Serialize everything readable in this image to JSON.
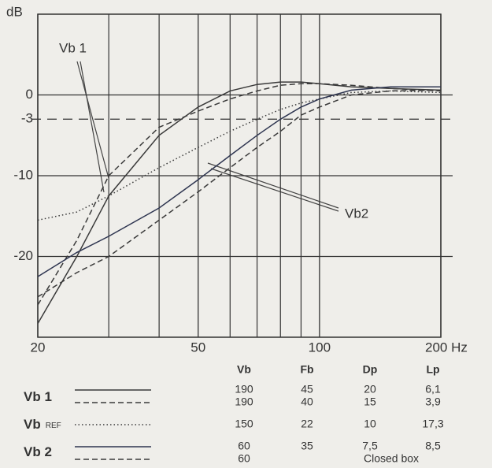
{
  "chart_data": {
    "type": "line",
    "ylabel": "dB",
    "log_x": true,
    "xlim": [
      20,
      200
    ],
    "ylim": [
      -30,
      10
    ],
    "xticks": [
      20,
      50,
      100,
      {
        "value": 200,
        "label": "200 Hz"
      }
    ],
    "xminorticks": [
      30,
      40,
      60,
      70,
      80,
      90
    ],
    "yticks": [
      0,
      {
        "value": -3,
        "label": "-3",
        "line": "dashed"
      },
      -10,
      -20
    ],
    "grid": true,
    "x": [
      20,
      25,
      30,
      40,
      50,
      60,
      70,
      80,
      90,
      100,
      120,
      150,
      200
    ],
    "series": [
      {
        "group": 0,
        "dash": "solid",
        "color": "#3a3a3a",
        "values": [
          -28.3,
          -20,
          -12.5,
          -5,
          -1.5,
          0.5,
          1.3,
          1.6,
          1.6,
          1.4,
          1.0,
          0.8,
          0.6
        ]
      },
      {
        "group": 0,
        "dash": "dashed",
        "color": "#3a3a3a",
        "values": [
          -26,
          -18,
          -10,
          -4,
          -2,
          -0.5,
          0.5,
          1.2,
          1.4,
          1.4,
          1.2,
          0.8,
          0.5
        ]
      },
      {
        "group": 1,
        "dash": "dotted",
        "color": "#3a3a3a",
        "values": [
          -15.5,
          -14.5,
          -12.5,
          -9,
          -6.5,
          -4.5,
          -3,
          -1.8,
          -1,
          -0.5,
          0.3,
          0.5,
          0.3
        ]
      },
      {
        "group": 2,
        "dash": "solid",
        "color": "#2e3550",
        "values": [
          -22.5,
          -19.5,
          -17.5,
          -14,
          -10.5,
          -7.5,
          -5,
          -3,
          -1.5,
          -0.5,
          0.6,
          1.0,
          1.0
        ]
      },
      {
        "group": 2,
        "dash": "dashed",
        "color": "#3a3a3a",
        "values": [
          -25,
          -22,
          -20,
          -15.5,
          -12,
          -9,
          -6.5,
          -4.5,
          -2.5,
          -1.5,
          0,
          0.5,
          0.6
        ]
      }
    ],
    "annotations": [
      "Vb 1",
      "Vb2"
    ],
    "legend_groups": [
      {
        "name": "Vb 1"
      },
      {
        "name": "Vb",
        "sub": "REF"
      },
      {
        "name": "Vb 2"
      }
    ],
    "table": {
      "header": [
        "Vb",
        "Fb",
        "Dp",
        "Lp"
      ],
      "rows": [
        [
          "190",
          "45",
          "20",
          "6,1"
        ],
        [
          "190",
          "40",
          "15",
          "3,9"
        ],
        [
          "150",
          "22",
          "10",
          "17,3"
        ],
        [
          "60",
          "35",
          "7,5",
          "8,5"
        ],
        [
          "60",
          "Closed box"
        ]
      ]
    }
  }
}
